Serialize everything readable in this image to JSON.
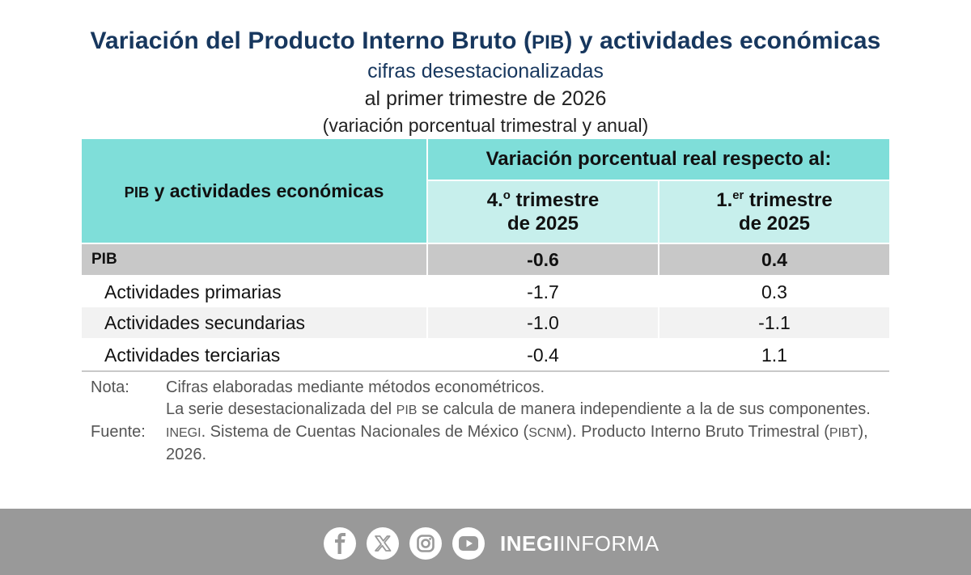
{
  "title": {
    "part1": "Variación del Producto Interno Bruto (",
    "abbr": "PIB",
    "part2": ") y actividades económicas"
  },
  "subtitle1": "cifras desestacionalizadas",
  "subtitle2": "al primer trimestre de 2026",
  "subtitle3": "(variación porcentual trimestral y anual)",
  "table": {
    "row_header": {
      "abbr": "PIB",
      "rest": " y actividades económicas"
    },
    "group_header": "Variación porcentual real respecto al:",
    "col1": {
      "pre": "4.",
      "sup": "o",
      "post": " trimestre",
      "line2": "de 2025"
    },
    "col2": {
      "pre": "1.",
      "sup": "er",
      "post": " trimestre",
      "line2": "de 2025"
    },
    "rows": [
      {
        "label": "PIB",
        "v1": "-0.6",
        "v2": "0.4"
      },
      {
        "label": "Actividades primarias",
        "v1": "-1.7",
        "v2": "0.3"
      },
      {
        "label": "Actividades secundarias",
        "v1": "-1.0",
        "v2": "-1.1"
      },
      {
        "label": "Actividades terciarias",
        "v1": "-0.4",
        "v2": "1.1"
      }
    ]
  },
  "notes": {
    "nota_label": "Nota:",
    "nota_line1": "Cifras elaboradas mediante métodos econométricos.",
    "nota_line2a": "La serie desestacionalizada del ",
    "nota_line2_abbr": "PIB",
    "nota_line2b": " se calcula de manera independiente a la de sus componentes.",
    "fuente_label": "Fuente:",
    "fuente_abbr1": "INEGI",
    "fuente_text1": ". Sistema de Cuentas Nacionales de México (",
    "fuente_abbr2": "SCNM",
    "fuente_text2": "). Producto Interno Bruto Trimestral (",
    "fuente_abbr3": "PIBT",
    "fuente_text3": "), 2026."
  },
  "footer": {
    "brand_bold": "INEGI",
    "brand_rest": "INFORMA",
    "icons": [
      "facebook-icon",
      "x-icon",
      "instagram-icon",
      "youtube-icon"
    ]
  }
}
